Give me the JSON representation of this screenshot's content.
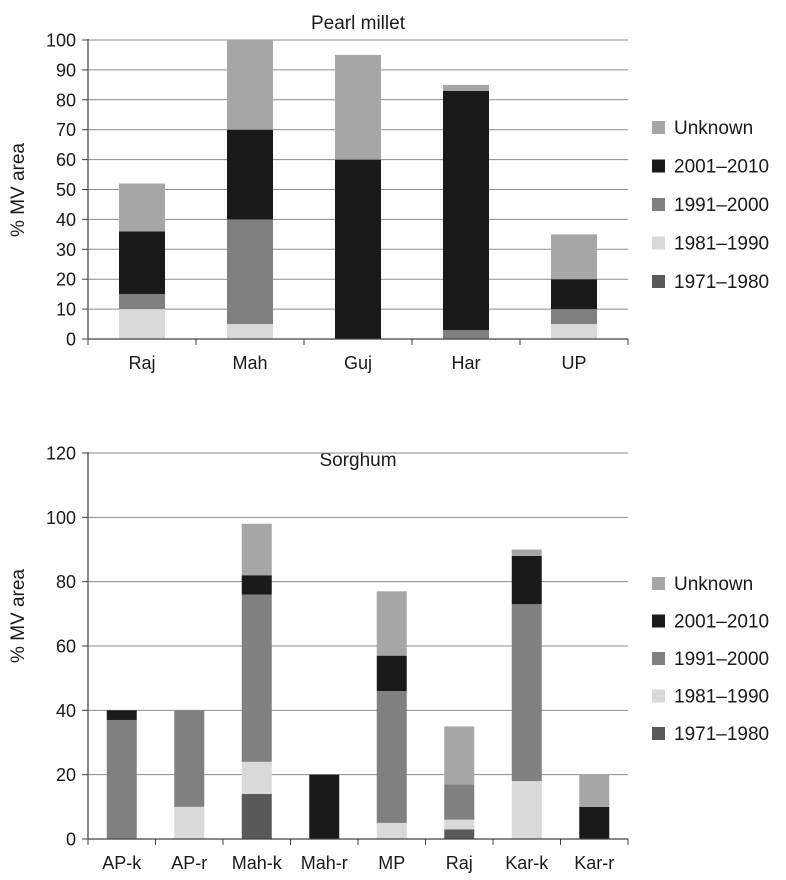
{
  "chart_data": [
    {
      "type": "bar",
      "stacked": true,
      "title": "Pearl millet",
      "ylabel": "% MV area",
      "xlabel": "",
      "ylim": [
        0,
        100
      ],
      "yticks": [
        0,
        10,
        20,
        30,
        40,
        50,
        60,
        70,
        80,
        90,
        100
      ],
      "grid": true,
      "legend": "right",
      "categories": [
        "Raj",
        "Mah",
        "Guj",
        "Har",
        "UP"
      ],
      "series": [
        {
          "name": "1971–1980",
          "color": "#595959",
          "values": [
            0,
            0,
            0,
            0,
            0
          ]
        },
        {
          "name": "1981–1990",
          "color": "#d9d9d9",
          "values": [
            10,
            5,
            0,
            0,
            5
          ]
        },
        {
          "name": "1991–2000",
          "color": "#808080",
          "values": [
            5,
            35,
            0,
            3,
            5
          ]
        },
        {
          "name": "2001–2010",
          "color": "#1a1a1a",
          "values": [
            21,
            30,
            60,
            80,
            10
          ]
        },
        {
          "name": "Unknown",
          "color": "#a6a6a6",
          "values": [
            16,
            30,
            35,
            2,
            15
          ]
        }
      ]
    },
    {
      "type": "bar",
      "stacked": true,
      "title": "Sorghum",
      "ylabel": "% MV area",
      "xlabel": "",
      "ylim": [
        0,
        120
      ],
      "yticks": [
        0,
        20,
        40,
        60,
        80,
        100,
        120
      ],
      "grid": true,
      "legend": "right",
      "categories": [
        "AP-k",
        "AP-r",
        "Mah-k",
        "Mah-r",
        "MP",
        "Raj",
        "Kar-k",
        "Kar-r"
      ],
      "series": [
        {
          "name": "1971–1980",
          "color": "#595959",
          "values": [
            0,
            0,
            14,
            0,
            0,
            3,
            0,
            0
          ]
        },
        {
          "name": "1981–1990",
          "color": "#d9d9d9",
          "values": [
            0,
            10,
            10,
            0,
            5,
            3,
            18,
            0
          ]
        },
        {
          "name": "1991–2000",
          "color": "#808080",
          "values": [
            37,
            30,
            52,
            0,
            41,
            11,
            55,
            0
          ]
        },
        {
          "name": "2001–2010",
          "color": "#1a1a1a",
          "values": [
            3,
            0,
            6,
            20,
            11,
            0,
            15,
            10
          ]
        },
        {
          "name": "Unknown",
          "color": "#a6a6a6",
          "values": [
            0,
            0,
            16,
            0,
            20,
            18,
            2,
            10
          ]
        }
      ]
    }
  ]
}
